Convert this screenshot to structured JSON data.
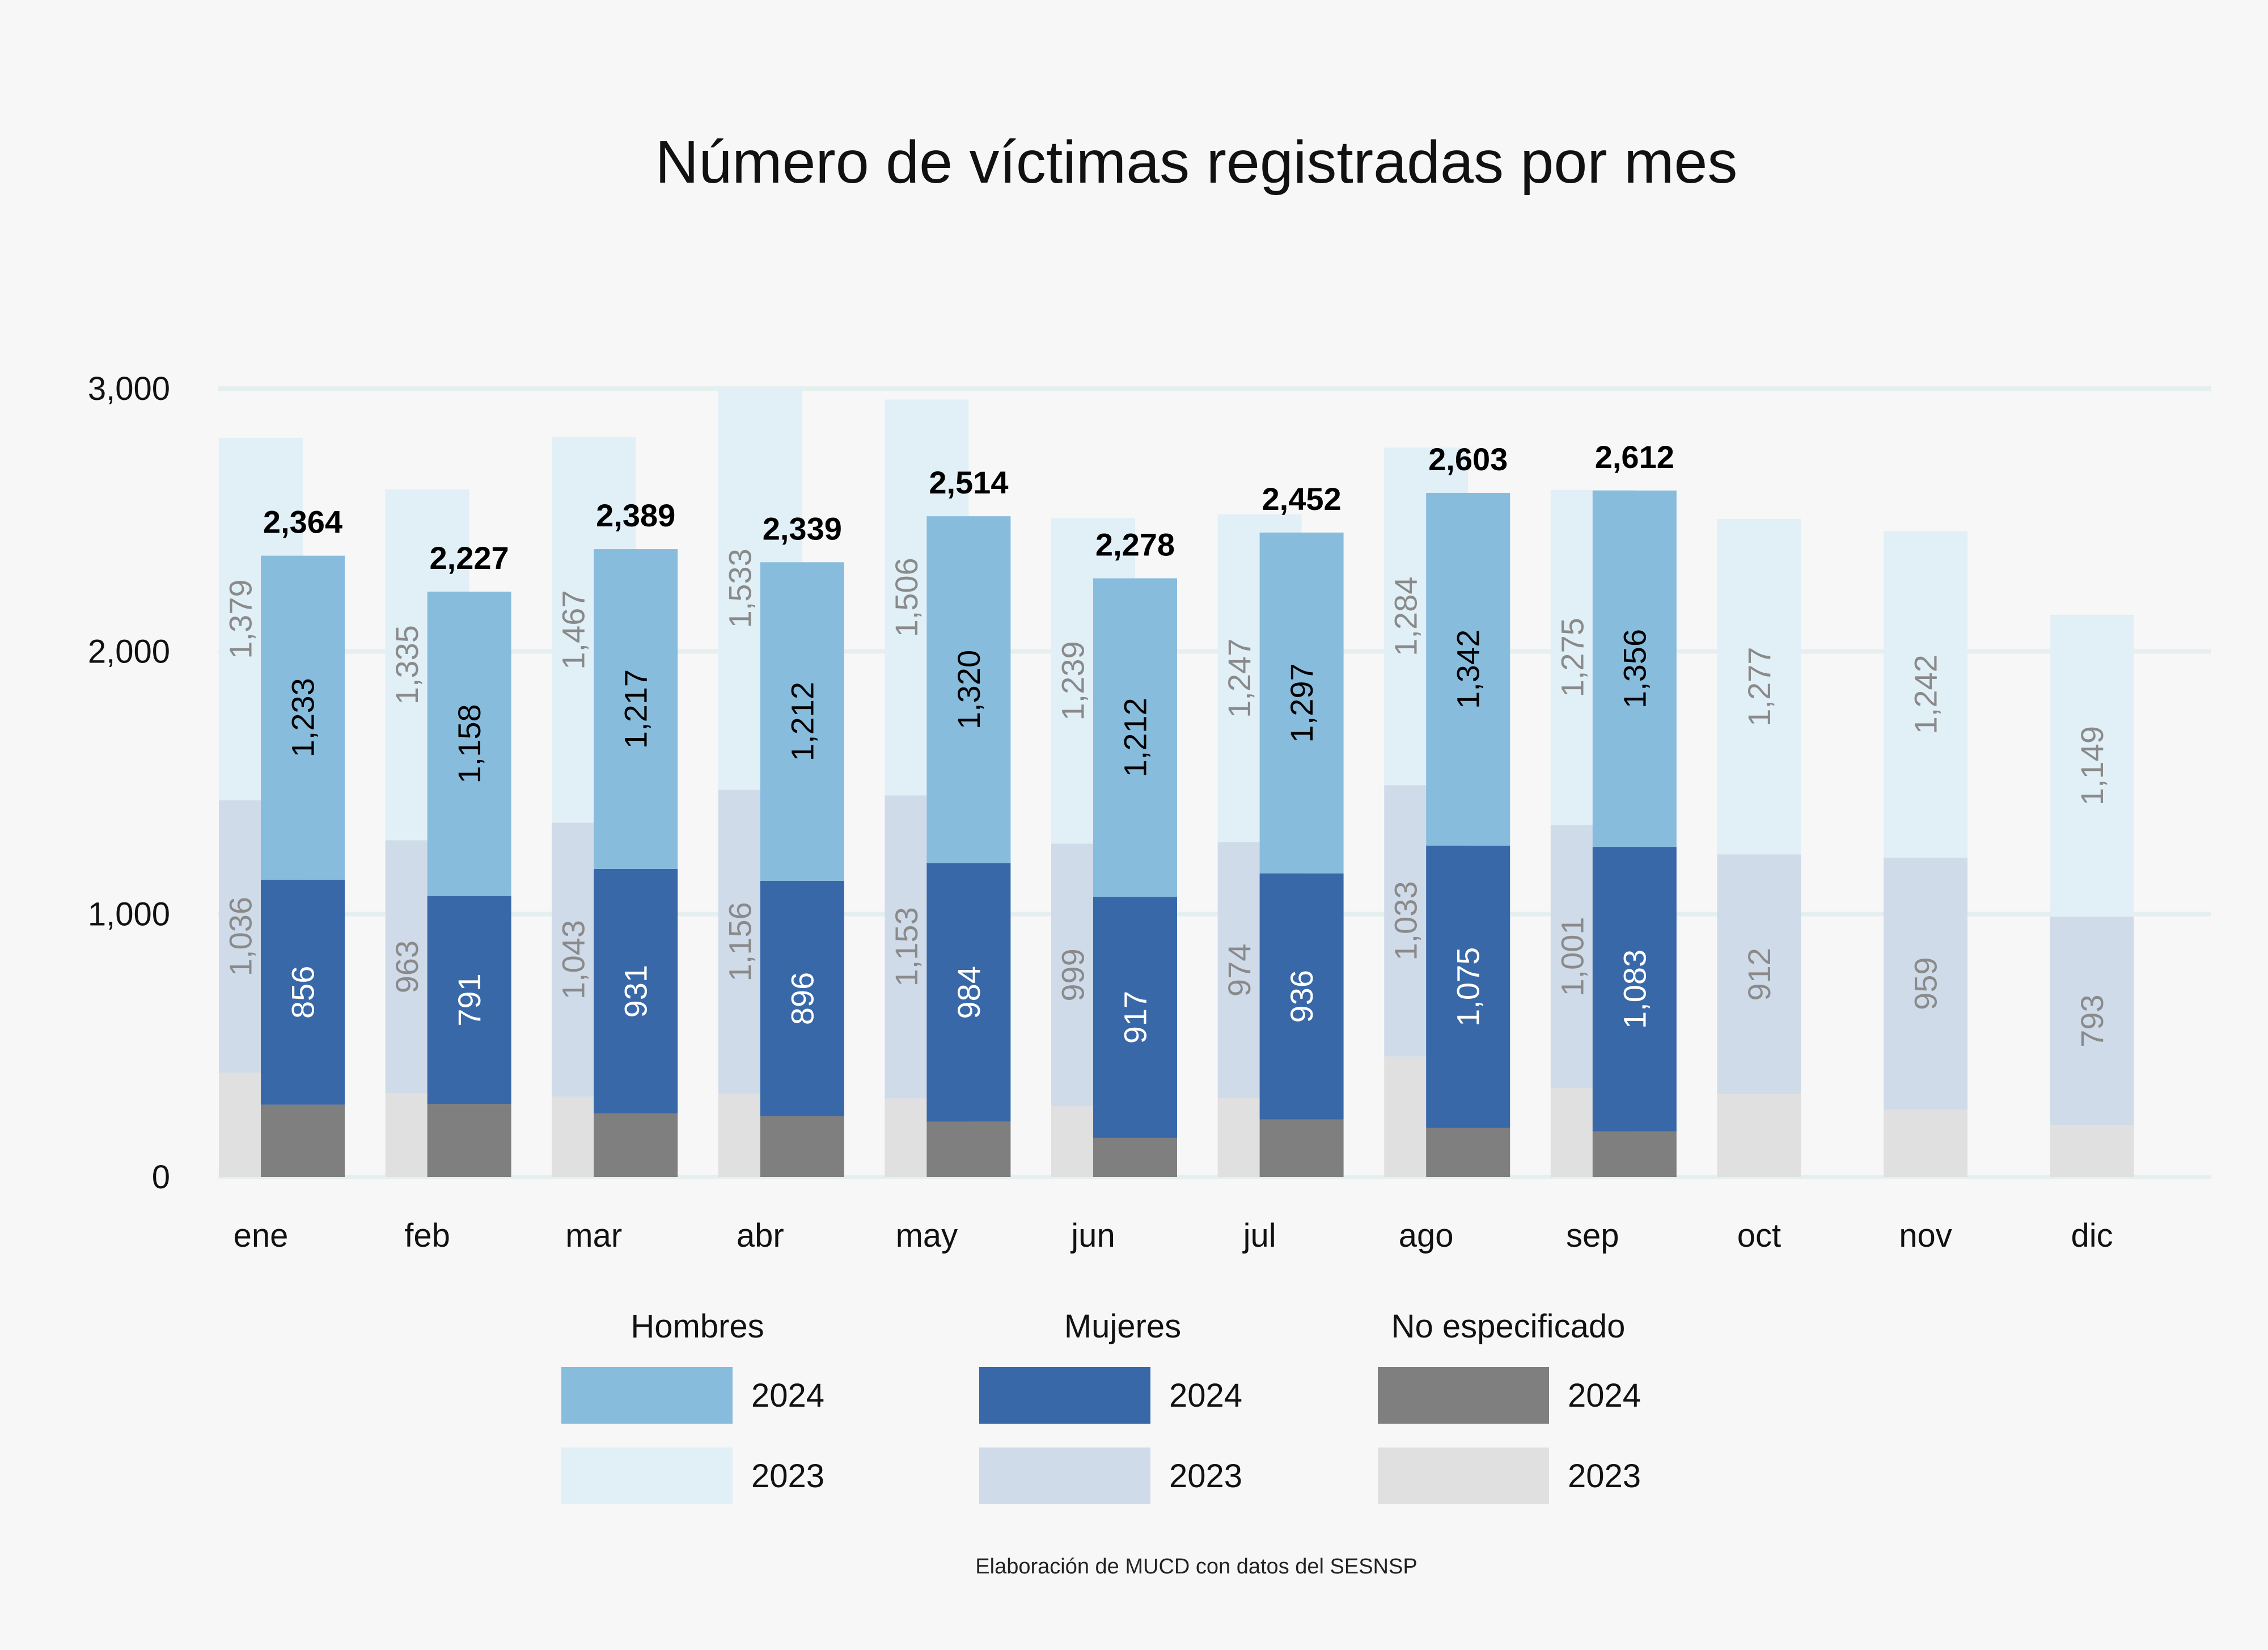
{
  "chart_data": {
    "type": "bar",
    "title": "Número de víctimas registradas por mes",
    "caption": "Elaboración de MUCD con datos del SESNSP",
    "categories": [
      "ene",
      "feb",
      "mar",
      "abr",
      "may",
      "jun",
      "jul",
      "ago",
      "sep",
      "oct",
      "nov",
      "dic"
    ],
    "ylim": [
      0,
      3000
    ],
    "yticks": [
      0,
      1000,
      2000,
      3000
    ],
    "ytick_labels": [
      "0",
      "1,000",
      "2,000",
      "3,000"
    ],
    "grid": true,
    "legend": {
      "position": "bottom",
      "groups": [
        {
          "name": "Hombres",
          "entries": [
            "2024",
            "2023"
          ]
        },
        {
          "name": "Mujeres",
          "entries": [
            "2024",
            "2023"
          ]
        },
        {
          "name": "No especificado",
          "entries": [
            "2024",
            "2023"
          ]
        }
      ]
    },
    "colors": {
      "hombres_2024": "#88bcdd",
      "hombres_2023": "#e1eff7",
      "mujeres_2024": "#3868a8",
      "mujeres_2023": "#d0dbea",
      "no_especificado_2024": "#7f7f7f",
      "no_especificado_2023": "#e0e0e0"
    },
    "series_2024": {
      "total": [
        2364,
        2227,
        2389,
        2339,
        2514,
        2278,
        2452,
        2603,
        2612,
        null,
        null,
        null
      ],
      "total_labels": [
        "2,364",
        "2,227",
        "2,389",
        "2,339",
        "2,514",
        "2,278",
        "2,452",
        "2,603",
        "2,612",
        null,
        null,
        null
      ],
      "hombres": [
        1233,
        1158,
        1217,
        1212,
        1320,
        1212,
        1297,
        1342,
        1356,
        null,
        null,
        null
      ],
      "hombres_labels": [
        "1,233",
        "1,158",
        "1,217",
        "1,212",
        "1,320",
        "1,212",
        "1,297",
        "1,342",
        "1,356",
        null,
        null,
        null
      ],
      "mujeres": [
        856,
        791,
        931,
        896,
        984,
        917,
        936,
        1075,
        1083,
        null,
        null,
        null
      ],
      "mujeres_labels": [
        "856",
        "791",
        "931",
        "896",
        "984",
        "917",
        "936",
        "1,075",
        "1,083",
        null,
        null,
        null
      ],
      "no_especificado": [
        275,
        278,
        241,
        231,
        210,
        149,
        219,
        186,
        173,
        null,
        null,
        null
      ]
    },
    "series_2023": {
      "hombres": [
        1379,
        1335,
        1467,
        1533,
        1506,
        1239,
        1247,
        1284,
        1275,
        1277,
        1242,
        1149
      ],
      "hombres_labels": [
        "1,379",
        "1,335",
        "1,467",
        "1,533",
        "1,506",
        "1,239",
        "1,247",
        "1,284",
        "1,275",
        "1,277",
        "1,242",
        "1,149"
      ],
      "mujeres": [
        1036,
        963,
        1043,
        1156,
        1153,
        999,
        974,
        1033,
        1001,
        912,
        959,
        793
      ],
      "mujeres_labels": [
        "1,036",
        "963",
        "1,043",
        "1,156",
        "1,153",
        "999",
        "974",
        "1,033",
        "1,001",
        "912",
        "959",
        "793"
      ],
      "no_especificado": [
        397,
        318,
        305,
        317,
        299,
        269,
        300,
        458,
        338,
        315,
        256,
        197
      ]
    }
  }
}
